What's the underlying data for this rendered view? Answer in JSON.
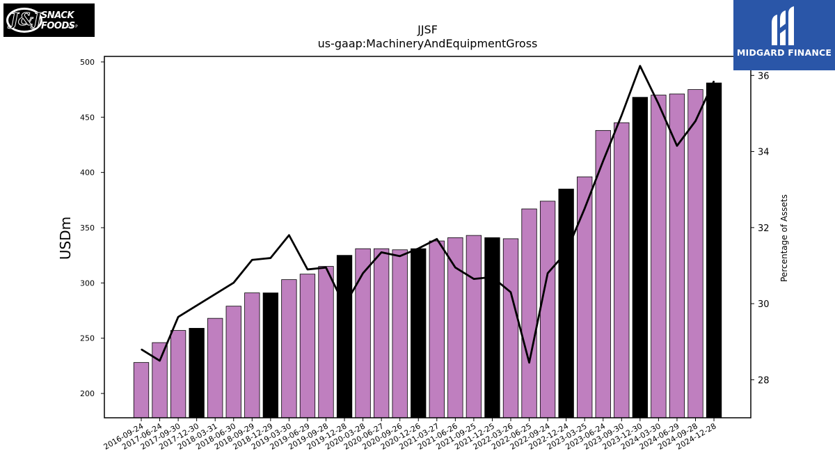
{
  "logos": {
    "left": {
      "brand": "SNACK FOODS",
      "corp": "CORP",
      "mark": "J&J"
    },
    "right": {
      "name": "MIDGARD FINANCE"
    }
  },
  "colors": {
    "bar": "#bf7fbf",
    "bar_highlight": "#000000",
    "line": "#000000"
  },
  "chart_data": {
    "type": "bar",
    "title": "JJSF",
    "subtitle": "us-gaap:MachineryAndEquipmentGross",
    "ylabel": "USDm",
    "y2label": "Percentage of Assets",
    "ylim": [
      178,
      505
    ],
    "y2lim": [
      27.0,
      36.5
    ],
    "yticks": [
      200,
      250,
      300,
      350,
      400,
      450,
      500
    ],
    "y2ticks": [
      28,
      30,
      32,
      34,
      36
    ],
    "categories": [
      "2016-09-24",
      "2017-06-24",
      "2017-09-30",
      "2017-12-30",
      "2018-03-31",
      "2018-06-30",
      "2018-09-29",
      "2018-12-29",
      "2019-03-30",
      "2019-06-29",
      "2019-09-28",
      "2019-12-28",
      "2020-03-28",
      "2020-06-27",
      "2020-09-26",
      "2020-12-26",
      "2021-03-27",
      "2021-06-26",
      "2021-09-25",
      "2021-12-25",
      "2022-03-26",
      "2022-06-25",
      "2022-09-24",
      "2022-12-24",
      "2023-03-25",
      "2023-06-24",
      "2023-09-30",
      "2023-12-30",
      "2024-03-30",
      "2024-06-29",
      "2024-09-28",
      "2024-12-28"
    ],
    "series": [
      {
        "name": "",
        "kind": "bar",
        "values": [
          228,
          246,
          257,
          259,
          268,
          279,
          291,
          291,
          303,
          308,
          315,
          325,
          331,
          331,
          330,
          331,
          338,
          341,
          343,
          341,
          340,
          367,
          374,
          385,
          396,
          438,
          445,
          468,
          470,
          471,
          475,
          481
        ],
        "highlight": [
          false,
          false,
          false,
          true,
          false,
          false,
          false,
          true,
          false,
          false,
          false,
          true,
          false,
          false,
          false,
          true,
          false,
          false,
          false,
          true,
          false,
          false,
          false,
          true,
          false,
          false,
          false,
          true,
          false,
          false,
          false,
          true
        ]
      },
      {
        "name": "",
        "kind": "line",
        "axis": "right",
        "values": [
          28.8,
          28.5,
          29.65,
          29.95,
          30.25,
          30.55,
          31.15,
          31.2,
          31.8,
          30.9,
          30.95,
          29.95,
          30.8,
          31.35,
          31.25,
          31.45,
          31.7,
          30.95,
          30.65,
          30.7,
          30.3,
          28.45,
          30.8,
          31.35,
          32.5,
          33.75,
          34.95,
          36.25,
          35.25,
          34.15,
          34.8,
          35.85
        ]
      }
    ]
  }
}
